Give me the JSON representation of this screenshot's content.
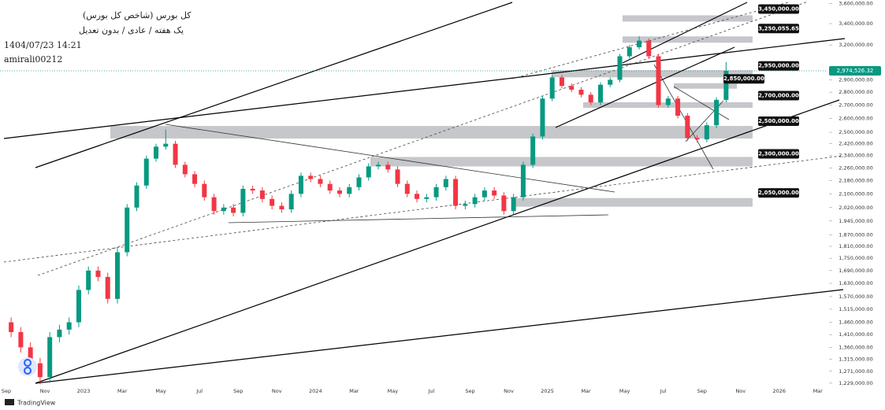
{
  "chart_data": {
    "type": "candlestick",
    "title": "کل بورس (شاخص کل بورس)",
    "subtitle": "یک هفته / عادی / بدون تعدیل",
    "timestamp": "1404/07/23 14:21",
    "author": "amirali00212",
    "watermark": "TradingView",
    "log_scale": true,
    "grid": false,
    "up_color": "#089981",
    "down_color": "#f23645",
    "categories": [
      "Sep",
      null,
      null,
      null,
      "Nov",
      null,
      null,
      null,
      "2023",
      null,
      null,
      null,
      "Mar",
      null,
      null,
      null,
      "May",
      null,
      null,
      null,
      "Jul",
      null,
      null,
      null,
      "Sep",
      null,
      null,
      null,
      "Nov",
      null,
      null,
      null,
      "2024",
      null,
      null,
      null,
      "Mar",
      null,
      null,
      null,
      "May",
      null,
      null,
      null,
      "Jul",
      null,
      null,
      null,
      "Sep",
      null,
      null,
      null,
      "Nov",
      null,
      null,
      null,
      "2025",
      null,
      null,
      null,
      "Mar",
      null,
      null,
      null,
      "May",
      null,
      null,
      null,
      "Jul",
      null,
      null,
      null,
      "Sep",
      null,
      null,
      null,
      "Nov",
      null,
      null,
      null,
      "2026",
      null,
      null,
      null,
      "Mar",
      null
    ],
    "open": [
      1460000,
      1420000,
      1360000,
      1300000,
      1250000,
      1400000,
      1430000,
      1460000,
      1600000,
      1690000,
      1660000,
      1560000,
      1780000,
      2020000,
      2150000,
      2320000,
      2400000,
      2420000,
      2280000,
      2220000,
      2160000,
      2080000,
      2000000,
      2020000,
      1990000,
      2130000,
      2120000,
      2070000,
      2030000,
      2010000,
      2100000,
      2210000,
      2190000,
      2160000,
      2120000,
      2100000,
      2140000,
      2200000,
      2270000,
      2280000,
      2250000,
      2160000,
      2100000,
      2070000,
      2080000,
      2140000,
      2190000,
      2030000,
      2040000,
      2080000,
      2120000,
      2090000,
      2000000,
      2080000,
      2280000,
      2470000,
      2750000,
      2920000,
      2850000,
      2820000,
      2780000,
      2720000,
      2860000,
      2900000,
      3100000,
      3180000,
      3240000,
      3100000,
      2700000,
      2750000,
      2620000,
      2460000,
      2450000,
      2550000,
      2740000,
      null,
      null,
      null,
      null,
      null,
      null,
      null,
      null,
      null,
      null,
      null
    ],
    "high": [
      1480000,
      1440000,
      1380000,
      1320000,
      1420000,
      1450000,
      1480000,
      1620000,
      1710000,
      1710000,
      1680000,
      1800000,
      2040000,
      2170000,
      2340000,
      2420000,
      2520000,
      2440000,
      2300000,
      2240000,
      2180000,
      2100000,
      2040000,
      2040000,
      2150000,
      2150000,
      2140000,
      2090000,
      2050000,
      2120000,
      2230000,
      2230000,
      2210000,
      2180000,
      2140000,
      2160000,
      2220000,
      2290000,
      2300000,
      2300000,
      2270000,
      2180000,
      2120000,
      2100000,
      2160000,
      2210000,
      2210000,
      2060000,
      2100000,
      2140000,
      2140000,
      2110000,
      2100000,
      2300000,
      2490000,
      2770000,
      2940000,
      2940000,
      2870000,
      2840000,
      2800000,
      2880000,
      2920000,
      3120000,
      3200000,
      3280000,
      3260000,
      3120000,
      2770000,
      2770000,
      2640000,
      2480000,
      2570000,
      2760000,
      3050000,
      null,
      null,
      null,
      null,
      null,
      null,
      null,
      null,
      null,
      null,
      null
    ],
    "low": [
      1400000,
      1340000,
      1280000,
      1225000,
      1230000,
      1380000,
      1410000,
      1440000,
      1580000,
      1640000,
      1540000,
      1540000,
      1760000,
      2000000,
      2130000,
      2300000,
      2380000,
      2260000,
      2200000,
      2140000,
      2060000,
      1980000,
      1980000,
      1970000,
      1970000,
      2100000,
      2050000,
      2010000,
      1990000,
      1990000,
      2080000,
      2170000,
      2140000,
      2100000,
      2080000,
      2080000,
      2120000,
      2180000,
      2250000,
      2230000,
      2140000,
      2080000,
      2050000,
      2050000,
      2060000,
      2120000,
      2010000,
      2010000,
      2020000,
      2060000,
      2070000,
      1980000,
      1980000,
      2060000,
      2260000,
      2450000,
      2730000,
      2830000,
      2800000,
      2760000,
      2700000,
      2700000,
      2840000,
      2880000,
      3080000,
      3160000,
      3080000,
      2680000,
      2680000,
      2600000,
      2440000,
      2430000,
      2430000,
      2530000,
      2720000,
      null,
      null,
      null,
      null,
      null,
      null,
      null,
      null,
      null,
      null,
      null
    ],
    "close": [
      1420000,
      1360000,
      1300000,
      1250000,
      1400000,
      1430000,
      1460000,
      1600000,
      1690000,
      1660000,
      1560000,
      1780000,
      2020000,
      2150000,
      2320000,
      2400000,
      2420000,
      2280000,
      2220000,
      2160000,
      2080000,
      2000000,
      2020000,
      1990000,
      2130000,
      2120000,
      2070000,
      2030000,
      2010000,
      2100000,
      2210000,
      2190000,
      2160000,
      2120000,
      2100000,
      2140000,
      2200000,
      2270000,
      2280000,
      2250000,
      2160000,
      2100000,
      2070000,
      2080000,
      2140000,
      2190000,
      2030000,
      2040000,
      2080000,
      2120000,
      2090000,
      2000000,
      2080000,
      2280000,
      2470000,
      2750000,
      2920000,
      2850000,
      2820000,
      2780000,
      2720000,
      2860000,
      2900000,
      3100000,
      3180000,
      3240000,
      3100000,
      2700000,
      2750000,
      2620000,
      2460000,
      2450000,
      2550000,
      2740000,
      2974526.32,
      null,
      null,
      null,
      null,
      null,
      null,
      null,
      null,
      null,
      null,
      null
    ],
    "last_price": {
      "value": 2974526.32,
      "label": "2,974,526.32"
    },
    "ylim": [
      1215000,
      3635000
    ],
    "yticks": [
      {
        "value": 3600000,
        "label": "3,600,000.00"
      },
      {
        "value": 3400000,
        "label": "3,400,000.00"
      },
      {
        "value": 3200000,
        "label": "3,200,000.00"
      },
      {
        "value": 2900000,
        "label": "2,900,000.00"
      },
      {
        "value": 2800000,
        "label": "2,800,000.00"
      },
      {
        "value": 2700000,
        "label": "2,700,000.00"
      },
      {
        "value": 2600000,
        "label": "2,600,000.00"
      },
      {
        "value": 2500000,
        "label": "2,500,000.00"
      },
      {
        "value": 2420000,
        "label": "2,420,000.00"
      },
      {
        "value": 2340000,
        "label": "2,340,000.00"
      },
      {
        "value": 2260000,
        "label": "2,260,000.00"
      },
      {
        "value": 2180000,
        "label": "2,180,000.00"
      },
      {
        "value": 2100000,
        "label": "2,100,000.00"
      },
      {
        "value": 2020000,
        "label": "2,020,000.00"
      },
      {
        "value": 1945000,
        "label": "1,945,000.00"
      },
      {
        "value": 1870000,
        "label": "1,870,000.00"
      },
      {
        "value": 1810000,
        "label": "1,810,000.00"
      },
      {
        "value": 1750000,
        "label": "1,750,000.00"
      },
      {
        "value": 1690000,
        "label": "1,690,000.00"
      },
      {
        "value": 1630000,
        "label": "1,630,000.00"
      },
      {
        "value": 1570000,
        "label": "1,570,000.00"
      },
      {
        "value": 1515000,
        "label": "1,515,000.00"
      },
      {
        "value": 1460000,
        "label": "1,460,000.00"
      },
      {
        "value": 1410000,
        "label": "1,410,000.00"
      },
      {
        "value": 1360000,
        "label": "1,360,000.00"
      },
      {
        "value": 1315000,
        "label": "1,315,000.00"
      },
      {
        "value": 1271000,
        "label": "1,271,000.00"
      },
      {
        "value": 1229000,
        "label": "1,229,000.00"
      }
    ],
    "levels": [
      {
        "value": 3450000,
        "label": "3,450,000.00"
      },
      {
        "value": 3250055.65,
        "label": "3,250,055.65"
      },
      {
        "value": 2950000,
        "label": "2,950,000.00"
      },
      {
        "value": 2850000,
        "label": "2,850,000.00"
      },
      {
        "value": 2700000,
        "label": "2,700,000.00"
      },
      {
        "value": 2500000,
        "label": "2,500,000.00"
      },
      {
        "value": 2300000,
        "label": "2,300,000.00"
      },
      {
        "value": 2050000,
        "label": "2,050,000.00"
      }
    ]
  }
}
